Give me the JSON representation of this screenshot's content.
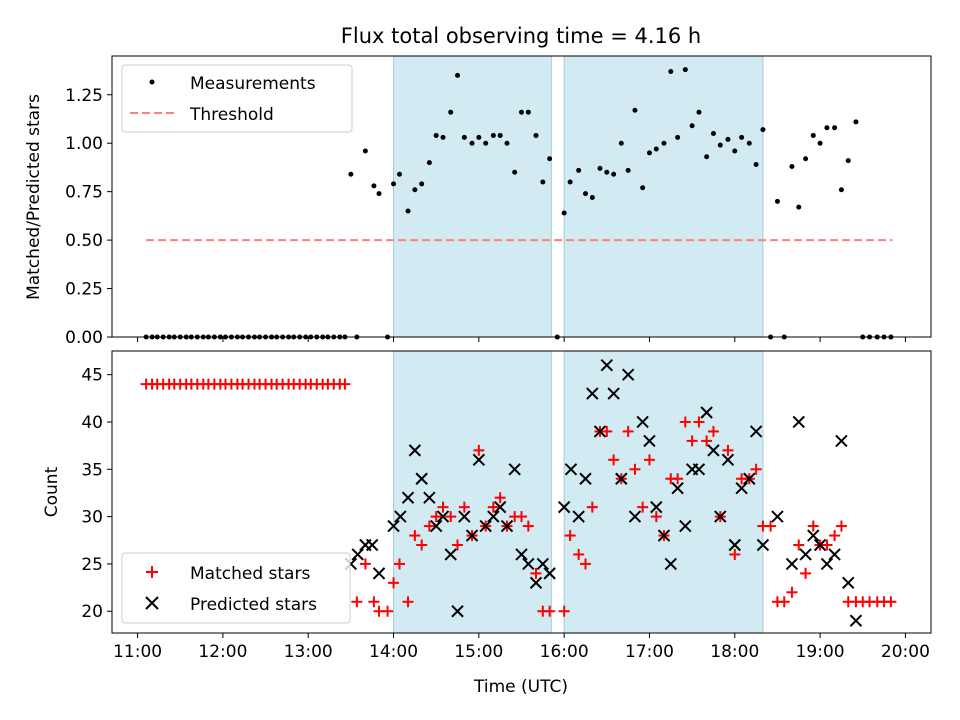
{
  "chart_data": [
    {
      "type": "scatter",
      "title": "Flux total observing time = 4.16 h",
      "ylabel": "Matched/Predicted stars",
      "xlabel": "",
      "x_unit": "hours UTC",
      "xlim": [
        10.7,
        20.3
      ],
      "ylim": [
        0,
        1.45
      ],
      "yticks": [
        "0.00",
        "0.25",
        "0.50",
        "0.75",
        "1.00",
        "1.25"
      ],
      "ytick_values": [
        0,
        0.25,
        0.5,
        0.75,
        1.0,
        1.25
      ],
      "xtick_values": [
        11,
        12,
        13,
        14,
        15,
        16,
        17,
        18,
        19,
        20
      ],
      "observing_windows": [
        [
          14.0,
          15.85
        ],
        [
          16.0,
          18.33
        ]
      ],
      "legend_position": "upper-left",
      "series": [
        {
          "name": "Measurements",
          "marker": "dot",
          "color": "#000000",
          "x": [
            11.1,
            11.17,
            11.23,
            11.3,
            11.37,
            11.43,
            11.5,
            11.57,
            11.63,
            11.7,
            11.77,
            11.83,
            11.9,
            11.97,
            12.03,
            12.1,
            12.17,
            12.23,
            12.3,
            12.37,
            12.43,
            12.5,
            12.57,
            12.63,
            12.7,
            12.77,
            12.83,
            12.9,
            12.97,
            13.03,
            13.1,
            13.17,
            13.23,
            13.3,
            13.37,
            13.43,
            13.5,
            13.57,
            13.67,
            13.77,
            13.83,
            13.93,
            14.0,
            14.07,
            14.17,
            14.25,
            14.33,
            14.42,
            14.5,
            14.58,
            14.67,
            14.75,
            14.83,
            14.92,
            15.0,
            15.08,
            15.17,
            15.25,
            15.33,
            15.42,
            15.5,
            15.58,
            15.67,
            15.75,
            15.83,
            15.92,
            16.0,
            16.07,
            16.17,
            16.25,
            16.33,
            16.42,
            16.5,
            16.58,
            16.67,
            16.75,
            16.83,
            16.92,
            17.0,
            17.08,
            17.17,
            17.25,
            17.33,
            17.42,
            17.5,
            17.58,
            17.67,
            17.75,
            17.83,
            17.92,
            18.0,
            18.08,
            18.17,
            18.25,
            18.33,
            18.42,
            18.5,
            18.58,
            18.67,
            18.75,
            18.83,
            18.92,
            19.0,
            19.08,
            19.17,
            19.25,
            19.33,
            19.42,
            19.5,
            19.58,
            19.67,
            19.75,
            19.83
          ],
          "y": [
            0,
            0,
            0,
            0,
            0,
            0,
            0,
            0,
            0,
            0,
            0,
            0,
            0,
            0,
            0,
            0,
            0,
            0,
            0,
            0,
            0,
            0,
            0,
            0,
            0,
            0,
            0,
            0,
            0,
            0,
            0,
            0,
            0,
            0,
            0,
            0,
            0.84,
            0,
            0.96,
            0.78,
            0.74,
            0,
            0.79,
            0.84,
            0.65,
            0.76,
            0.79,
            0.9,
            1.04,
            1.03,
            1.16,
            1.35,
            1.03,
            1.0,
            1.03,
            1.0,
            1.04,
            1.04,
            1.0,
            0.85,
            1.16,
            1.16,
            1.04,
            0.8,
            0.92,
            0,
            0.64,
            0.8,
            0.86,
            0.74,
            0.72,
            0.87,
            0.85,
            0.84,
            1.0,
            0.86,
            1.17,
            0.77,
            0.95,
            0.97,
            1.0,
            1.37,
            1.03,
            1.38,
            1.09,
            1.16,
            0.93,
            1.05,
            0.99,
            1.02,
            0.96,
            1.03,
            1.0,
            0.89,
            1.07,
            0,
            0.7,
            0,
            0.88,
            0.67,
            0.92,
            1.04,
            1.0,
            1.08,
            1.08,
            0.76,
            0.91,
            1.11,
            0,
            0,
            0,
            0,
            0
          ]
        },
        {
          "name": "Threshold",
          "marker": "dashed-line",
          "color": "#ff7f7f",
          "x": [
            11.1,
            19.85
          ],
          "y": [
            0.5,
            0.5
          ]
        }
      ]
    },
    {
      "type": "scatter",
      "title": "",
      "ylabel": "Count",
      "xlabel": "Time (UTC)",
      "x_unit": "hours UTC",
      "xlim": [
        10.7,
        20.3
      ],
      "ylim": [
        17.7,
        47.5
      ],
      "yticks": [
        "20",
        "25",
        "30",
        "35",
        "40",
        "45"
      ],
      "ytick_values": [
        20,
        25,
        30,
        35,
        40,
        45
      ],
      "xticks": [
        "11:00",
        "12:00",
        "13:00",
        "14:00",
        "15:00",
        "16:00",
        "17:00",
        "18:00",
        "19:00",
        "20:00"
      ],
      "xtick_values": [
        11,
        12,
        13,
        14,
        15,
        16,
        17,
        18,
        19,
        20
      ],
      "observing_windows": [
        [
          14.0,
          15.85
        ],
        [
          16.0,
          18.33
        ]
      ],
      "legend_position": "lower-left",
      "series": [
        {
          "name": "Matched stars",
          "marker": "plus",
          "color": "#ff0000",
          "x": [
            11.1,
            11.17,
            11.23,
            11.3,
            11.37,
            11.43,
            11.5,
            11.57,
            11.63,
            11.7,
            11.77,
            11.83,
            11.9,
            11.97,
            12.03,
            12.1,
            12.17,
            12.23,
            12.3,
            12.37,
            12.43,
            12.5,
            12.57,
            12.63,
            12.7,
            12.77,
            12.83,
            12.9,
            12.97,
            13.03,
            13.1,
            13.17,
            13.23,
            13.3,
            13.37,
            13.43,
            13.57,
            13.67,
            13.77,
            13.83,
            13.93,
            14.0,
            14.07,
            14.17,
            14.25,
            14.33,
            14.42,
            14.5,
            14.58,
            14.67,
            14.75,
            14.83,
            14.92,
            15.0,
            15.08,
            15.17,
            15.25,
            15.33,
            15.42,
            15.5,
            15.58,
            15.67,
            15.75,
            15.83,
            16.0,
            16.07,
            16.17,
            16.25,
            16.33,
            16.42,
            16.5,
            16.58,
            16.67,
            16.75,
            16.83,
            16.92,
            17.0,
            17.08,
            17.17,
            17.25,
            17.33,
            17.42,
            17.5,
            17.58,
            17.67,
            17.75,
            17.83,
            17.92,
            18.0,
            18.08,
            18.17,
            18.25,
            18.33,
            18.42,
            18.5,
            18.58,
            18.67,
            18.75,
            18.83,
            18.92,
            19.0,
            19.08,
            19.17,
            19.25,
            19.33,
            19.42,
            19.5,
            19.58,
            19.67,
            19.75,
            19.83
          ],
          "y": [
            44,
            44,
            44,
            44,
            44,
            44,
            44,
            44,
            44,
            44,
            44,
            44,
            44,
            44,
            44,
            44,
            44,
            44,
            44,
            44,
            44,
            44,
            44,
            44,
            44,
            44,
            44,
            44,
            44,
            44,
            44,
            44,
            44,
            44,
            44,
            44,
            21,
            25,
            21,
            20,
            20,
            23,
            25,
            21,
            28,
            27,
            29,
            30,
            31,
            30,
            27,
            31,
            28,
            37,
            29,
            31,
            32,
            29,
            30,
            30,
            29,
            24,
            20,
            20,
            20,
            28,
            26,
            25,
            31,
            39,
            39,
            36,
            34,
            39,
            35,
            31,
            36,
            30,
            28,
            34,
            34,
            40,
            38,
            40,
            38,
            39,
            30,
            37,
            26,
            34,
            34,
            35,
            29,
            29,
            21,
            21,
            22,
            27,
            24,
            29,
            27,
            27,
            28,
            29,
            21,
            21,
            21,
            21,
            21,
            21,
            21
          ],
          "y_note": ""
        },
        {
          "name": "Predicted stars",
          "marker": "x",
          "color": "#000000",
          "x": [
            13.5,
            13.58,
            13.67,
            13.75,
            13.83,
            14.0,
            14.08,
            14.17,
            14.25,
            14.33,
            14.42,
            14.5,
            14.58,
            14.67,
            14.75,
            14.83,
            14.92,
            15.0,
            15.08,
            15.17,
            15.25,
            15.33,
            15.42,
            15.5,
            15.58,
            15.67,
            15.75,
            15.83,
            16.0,
            16.08,
            16.17,
            16.25,
            16.33,
            16.42,
            16.5,
            16.58,
            16.67,
            16.75,
            16.83,
            16.92,
            17.0,
            17.08,
            17.17,
            17.25,
            17.33,
            17.42,
            17.5,
            17.58,
            17.67,
            17.75,
            17.83,
            17.92,
            18.0,
            18.08,
            18.17,
            18.25,
            18.33,
            18.5,
            18.67,
            18.75,
            18.83,
            18.92,
            19.0,
            19.08,
            19.17,
            19.25,
            19.33,
            19.42
          ],
          "y": [
            25,
            26,
            27,
            27,
            24,
            29,
            30,
            32,
            37,
            34,
            32,
            29,
            30,
            26,
            20,
            30,
            28,
            36,
            29,
            30,
            31,
            29,
            35,
            26,
            25,
            23,
            25,
            24,
            31,
            35,
            30,
            34,
            43,
            39,
            46,
            43,
            34,
            45,
            30,
            40,
            38,
            31,
            28,
            25,
            33,
            29,
            35,
            35,
            41,
            37,
            30,
            36,
            27,
            33,
            34,
            39,
            27,
            30,
            25,
            40,
            26,
            28,
            27,
            25,
            26,
            38,
            23,
            19
          ]
        }
      ]
    }
  ]
}
